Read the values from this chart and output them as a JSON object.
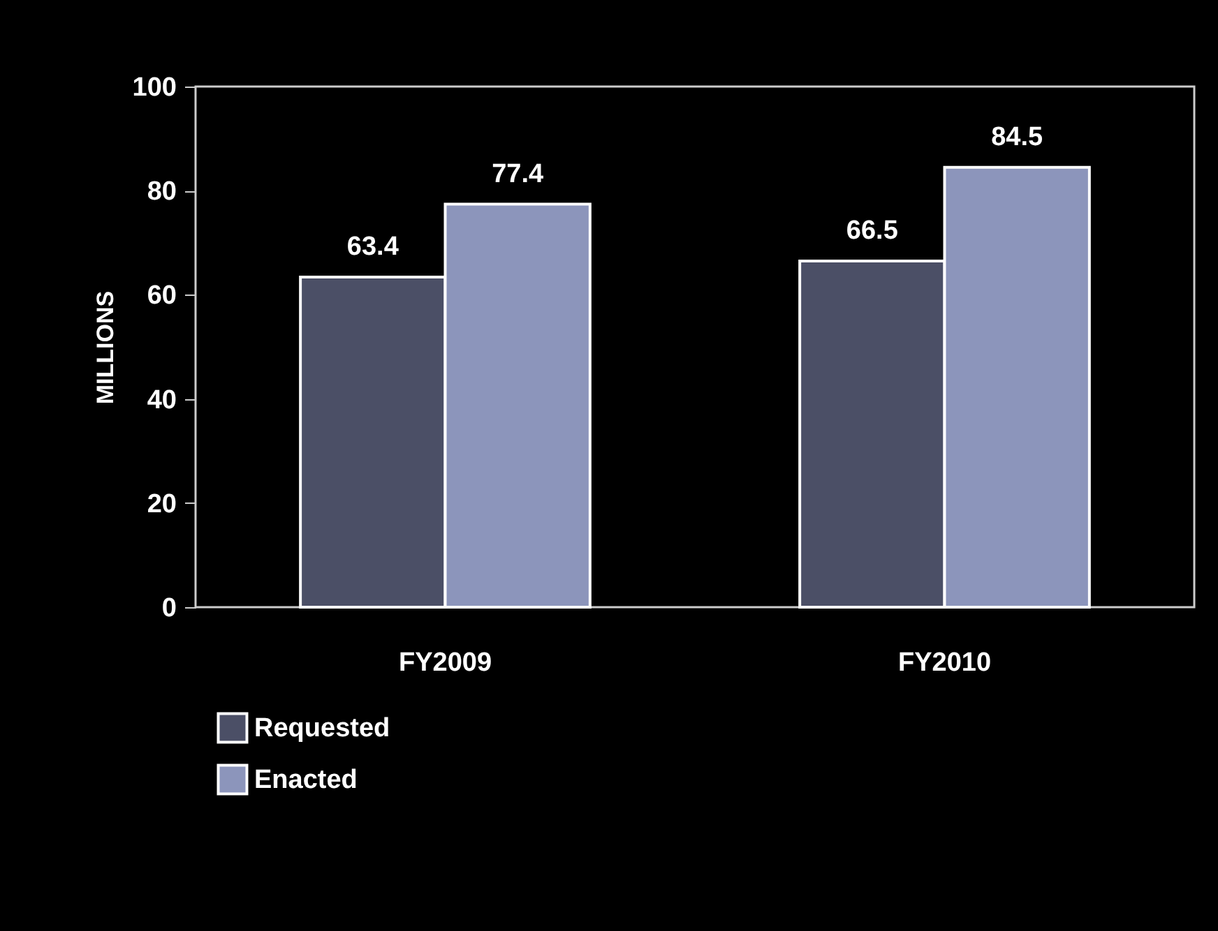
{
  "chart_data": {
    "type": "bar",
    "ylabel": "MILLIONS",
    "categories": [
      "FY2009",
      "FY2010"
    ],
    "series": [
      {
        "name": "Requested",
        "color": "#4b4f66",
        "values": [
          63.4,
          66.5
        ]
      },
      {
        "name": "Enacted",
        "color": "#8c95bb",
        "values": [
          77.4,
          84.5
        ]
      }
    ],
    "ylim": [
      0,
      100
    ],
    "yticks": [
      0,
      20,
      40,
      60,
      80,
      100
    ],
    "data_labels": true,
    "legend": "bottom left"
  }
}
